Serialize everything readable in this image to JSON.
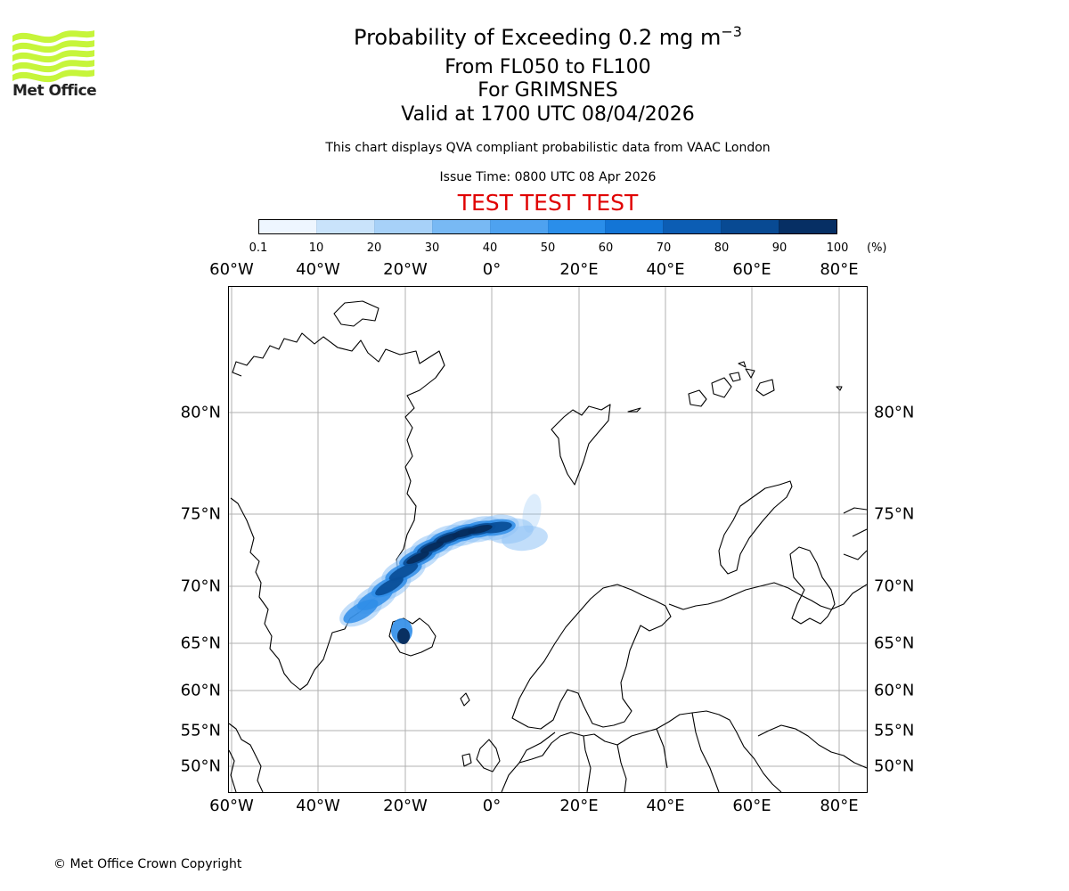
{
  "header": {
    "title_main": "Probability of Exceeding 0.2 mg m",
    "title_exp": "−3",
    "line_levels": "From FL050 to FL100",
    "line_volcano": "For GRIMSNES",
    "line_valid": "Valid at 1700 UTC 08/04/2026",
    "note_source": "This chart displays QVA compliant probabilistic data from VAAC London",
    "note_issue": "Issue Time: 0800 UTC 08 Apr 2026",
    "test_banner": "TEST TEST TEST"
  },
  "logo": {
    "text": "Met Office",
    "color": "#c6f53a"
  },
  "colorbar": {
    "ticks": [
      "0.1",
      "10",
      "20",
      "30",
      "40",
      "50",
      "60",
      "70",
      "80",
      "90",
      "100"
    ],
    "unit": "(%)",
    "colors": [
      "#eef6ff",
      "#c9e3fb",
      "#a7d1f8",
      "#78b9f4",
      "#4ea2f0",
      "#2a8eea",
      "#1375d6",
      "#0c5db4",
      "#084a93",
      "#062f64"
    ]
  },
  "map": {
    "lon_labels": [
      "60°W",
      "40°W",
      "20°W",
      "0°",
      "20°E",
      "40°E",
      "60°E",
      "80°E"
    ],
    "lat_labels": [
      "80°N",
      "75°N",
      "70°N",
      "65°N",
      "60°N",
      "55°N",
      "50°N"
    ],
    "plume_colors": {
      "low": "#8fc3f5",
      "mid": "#2f8de8",
      "high": "#0a4f99",
      "core": "#062a5a"
    }
  },
  "footer": {
    "copyright": "© Met Office Crown Copyright"
  }
}
